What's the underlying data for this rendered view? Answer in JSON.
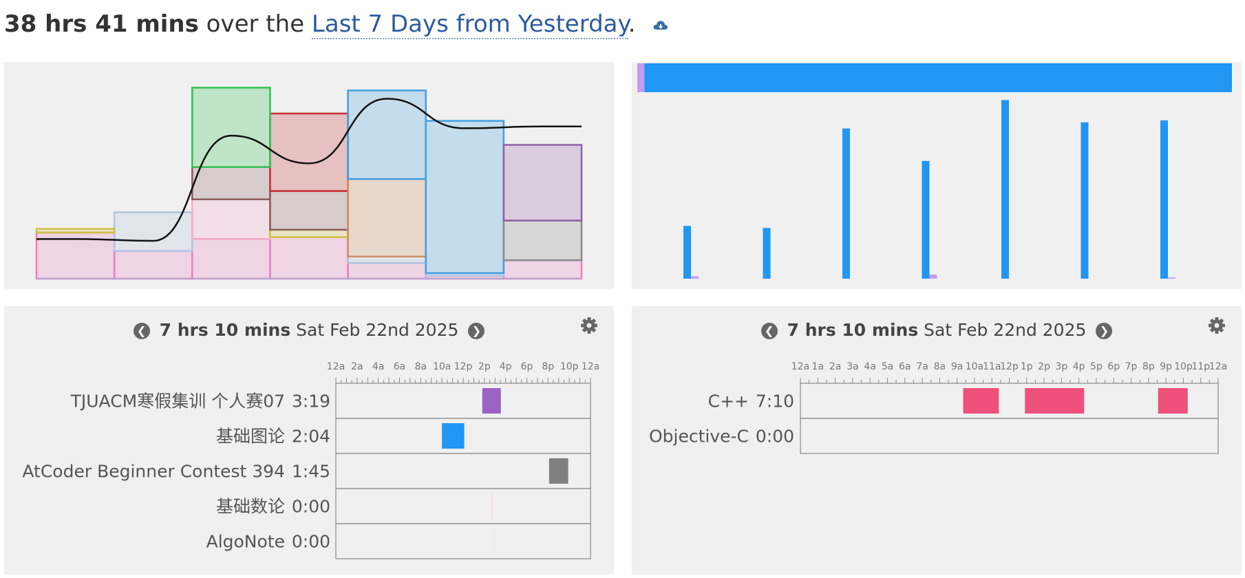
{
  "summary": {
    "total": "38 hrs 41 mins",
    "middle": " over the ",
    "range": "Last 7 Days from Yesterday",
    "end": ".",
    "icon": "cloud-download-icon"
  },
  "colors": {
    "blue": "#2196f3",
    "purple": "#9b63c4",
    "pink": "#f0507c",
    "gray": "#808080",
    "lavender": "#c39bf0",
    "panel": "#f0f0f0"
  },
  "projects_timeline": {
    "duration": "7 hrs 10 mins",
    "date": "Sat Feb 22nd 2025",
    "ticks": [
      "12a",
      "2a",
      "4a",
      "6a",
      "8a",
      "10a",
      "12p",
      "2p",
      "4p",
      "6p",
      "8p",
      "10p",
      "12a"
    ],
    "rows": [
      {
        "name": "TJUACM寒假集训 个人赛07",
        "time": "3:19",
        "color": "#9b63c4",
        "segments": [
          [
            13.8,
            15.55
          ]
        ]
      },
      {
        "name": "基础图论",
        "time": "2:04",
        "color": "#2196f3",
        "segments": [
          [
            10.0,
            12.1
          ]
        ]
      },
      {
        "name": "AtCoder Beginner Contest 394",
        "time": "1:45",
        "color": "#808080",
        "segments": [
          [
            20.1,
            21.9
          ]
        ]
      },
      {
        "name": "基础数论",
        "time": "0:00",
        "color": "#f8c8d4",
        "segments": [
          [
            14.7,
            14.75
          ]
        ]
      },
      {
        "name": "AlgoNote",
        "time": "0:00",
        "color": "#e8e8e8",
        "segments": [
          [
            14.9,
            14.95
          ]
        ]
      }
    ]
  },
  "languages_timeline": {
    "duration": "7 hrs 10 mins",
    "date": "Sat Feb 22nd 2025",
    "ticks": [
      "12a",
      "1a",
      "2a",
      "3a",
      "4a",
      "5a",
      "6a",
      "7a",
      "8a",
      "9a",
      "10a",
      "11a",
      "12p",
      "1p",
      "2p",
      "3p",
      "4p",
      "5p",
      "6p",
      "7p",
      "8p",
      "9p",
      "10p",
      "11p",
      "12a"
    ],
    "rows": [
      {
        "name": "C++",
        "time": "7:10",
        "color": "#f0507c",
        "segments": [
          [
            9.35,
            11.4
          ],
          [
            12.9,
            16.3
          ],
          [
            20.55,
            22.25
          ]
        ]
      },
      {
        "name": "Objective-C",
        "time": "0:00",
        "color": "#c39bf0",
        "segments": []
      }
    ]
  },
  "chart_data": [
    {
      "type": "area",
      "description_series": "stacked project time per day with total curve",
      "days": 7,
      "total_curve": [
        0.43,
        0.41,
        1.55,
        1.25,
        1.95,
        1.63,
        1.65
      ],
      "stacked_layers": [
        {
          "color": "#e880c0",
          "values": [
            0.5,
            0.3,
            0.43,
            0.45,
            0.17,
            0.03,
            0.2
          ]
        },
        {
          "color": "#b0c4e0",
          "values": [
            0.0,
            0.42,
            0.0,
            0.0,
            0.07,
            0.03,
            0.0
          ]
        },
        {
          "color": "#f5a8c8",
          "values": [
            0.0,
            0.0,
            0.43,
            0.0,
            0.0,
            0.0,
            0.0
          ]
        },
        {
          "color": "#d0c040",
          "values": [
            0.04,
            0.0,
            0.0,
            0.08,
            0.0,
            0.0,
            0.0
          ]
        },
        {
          "color": "#8b5a5a",
          "values": [
            0.0,
            0.0,
            0.35,
            0.42,
            0.0,
            0.0,
            0.0
          ]
        },
        {
          "color": "#c83232",
          "values": [
            0.0,
            0.0,
            0.0,
            0.84,
            0.0,
            0.0,
            0.0
          ]
        },
        {
          "color": "#30c050",
          "values": [
            0.0,
            0.0,
            0.86,
            0.0,
            0.0,
            0.0,
            0.0
          ]
        },
        {
          "color": "#d09060",
          "values": [
            0.0,
            0.0,
            0.0,
            0.0,
            0.84,
            0.0,
            0.0
          ]
        },
        {
          "color": "#40a0e0",
          "values": [
            0.0,
            0.0,
            0.0,
            0.0,
            0.96,
            1.65,
            0.0
          ]
        },
        {
          "color": "#8a8a8a",
          "values": [
            0.0,
            0.0,
            0.0,
            0.0,
            0.0,
            0.0,
            0.43
          ]
        },
        {
          "color": "#9060a8",
          "values": [
            0.0,
            0.0,
            0.0,
            0.0,
            0.0,
            0.0,
            0.82
          ]
        }
      ],
      "ylim": [
        0,
        2.2
      ]
    },
    {
      "type": "bar",
      "language_share": [
        {
          "name": "Objective-C",
          "color": "#c39bf0",
          "value": 0.012
        },
        {
          "name": "C++",
          "color": "#2196f3",
          "value": 0.988
        }
      ],
      "series": [
        {
          "name": "C++",
          "color": "#2196f3",
          "values": [
            2.6,
            2.5,
            7.4,
            5.8,
            8.8,
            7.7,
            7.8
          ]
        },
        {
          "name": "Objective-C",
          "color": "#c39bf0",
          "values": [
            0.12,
            0.0,
            0.0,
            0.2,
            0.0,
            0.0,
            0.06
          ]
        }
      ],
      "ylim": [
        0,
        10
      ]
    }
  ]
}
